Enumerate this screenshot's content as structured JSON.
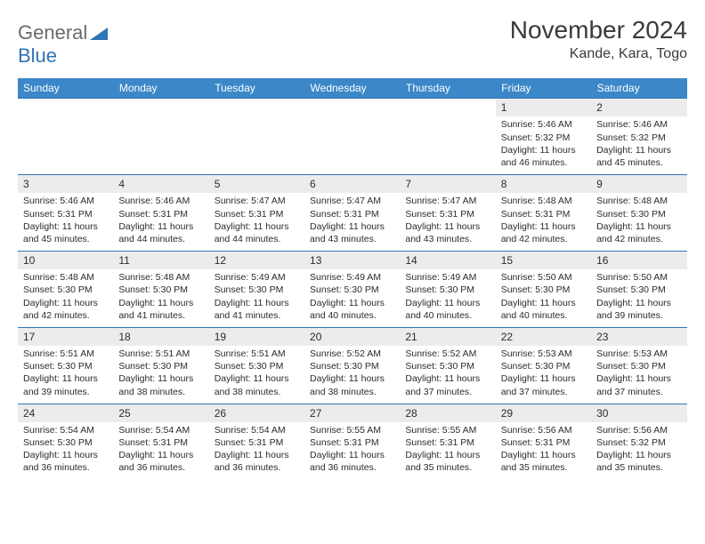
{
  "logo": {
    "word1": "General",
    "word2": "Blue"
  },
  "title": "November 2024",
  "location": "Kande, Kara, Togo",
  "colors": {
    "header_bg": "#3b87c8",
    "header_text": "#ffffff",
    "row_border": "#2f74b5",
    "daynum_bg": "#ececec",
    "text": "#2b2b2b",
    "logo_blue": "#2f74b5",
    "logo_gray": "#6b6b6b"
  },
  "day_headers": [
    "Sunday",
    "Monday",
    "Tuesday",
    "Wednesday",
    "Thursday",
    "Friday",
    "Saturday"
  ],
  "weeks": [
    [
      null,
      null,
      null,
      null,
      null,
      {
        "n": "1",
        "sr": "Sunrise: 5:46 AM",
        "ss": "Sunset: 5:32 PM",
        "dl": "Daylight: 11 hours and 46 minutes."
      },
      {
        "n": "2",
        "sr": "Sunrise: 5:46 AM",
        "ss": "Sunset: 5:32 PM",
        "dl": "Daylight: 11 hours and 45 minutes."
      }
    ],
    [
      {
        "n": "3",
        "sr": "Sunrise: 5:46 AM",
        "ss": "Sunset: 5:31 PM",
        "dl": "Daylight: 11 hours and 45 minutes."
      },
      {
        "n": "4",
        "sr": "Sunrise: 5:46 AM",
        "ss": "Sunset: 5:31 PM",
        "dl": "Daylight: 11 hours and 44 minutes."
      },
      {
        "n": "5",
        "sr": "Sunrise: 5:47 AM",
        "ss": "Sunset: 5:31 PM",
        "dl": "Daylight: 11 hours and 44 minutes."
      },
      {
        "n": "6",
        "sr": "Sunrise: 5:47 AM",
        "ss": "Sunset: 5:31 PM",
        "dl": "Daylight: 11 hours and 43 minutes."
      },
      {
        "n": "7",
        "sr": "Sunrise: 5:47 AM",
        "ss": "Sunset: 5:31 PM",
        "dl": "Daylight: 11 hours and 43 minutes."
      },
      {
        "n": "8",
        "sr": "Sunrise: 5:48 AM",
        "ss": "Sunset: 5:31 PM",
        "dl": "Daylight: 11 hours and 42 minutes."
      },
      {
        "n": "9",
        "sr": "Sunrise: 5:48 AM",
        "ss": "Sunset: 5:30 PM",
        "dl": "Daylight: 11 hours and 42 minutes."
      }
    ],
    [
      {
        "n": "10",
        "sr": "Sunrise: 5:48 AM",
        "ss": "Sunset: 5:30 PM",
        "dl": "Daylight: 11 hours and 42 minutes."
      },
      {
        "n": "11",
        "sr": "Sunrise: 5:48 AM",
        "ss": "Sunset: 5:30 PM",
        "dl": "Daylight: 11 hours and 41 minutes."
      },
      {
        "n": "12",
        "sr": "Sunrise: 5:49 AM",
        "ss": "Sunset: 5:30 PM",
        "dl": "Daylight: 11 hours and 41 minutes."
      },
      {
        "n": "13",
        "sr": "Sunrise: 5:49 AM",
        "ss": "Sunset: 5:30 PM",
        "dl": "Daylight: 11 hours and 40 minutes."
      },
      {
        "n": "14",
        "sr": "Sunrise: 5:49 AM",
        "ss": "Sunset: 5:30 PM",
        "dl": "Daylight: 11 hours and 40 minutes."
      },
      {
        "n": "15",
        "sr": "Sunrise: 5:50 AM",
        "ss": "Sunset: 5:30 PM",
        "dl": "Daylight: 11 hours and 40 minutes."
      },
      {
        "n": "16",
        "sr": "Sunrise: 5:50 AM",
        "ss": "Sunset: 5:30 PM",
        "dl": "Daylight: 11 hours and 39 minutes."
      }
    ],
    [
      {
        "n": "17",
        "sr": "Sunrise: 5:51 AM",
        "ss": "Sunset: 5:30 PM",
        "dl": "Daylight: 11 hours and 39 minutes."
      },
      {
        "n": "18",
        "sr": "Sunrise: 5:51 AM",
        "ss": "Sunset: 5:30 PM",
        "dl": "Daylight: 11 hours and 38 minutes."
      },
      {
        "n": "19",
        "sr": "Sunrise: 5:51 AM",
        "ss": "Sunset: 5:30 PM",
        "dl": "Daylight: 11 hours and 38 minutes."
      },
      {
        "n": "20",
        "sr": "Sunrise: 5:52 AM",
        "ss": "Sunset: 5:30 PM",
        "dl": "Daylight: 11 hours and 38 minutes."
      },
      {
        "n": "21",
        "sr": "Sunrise: 5:52 AM",
        "ss": "Sunset: 5:30 PM",
        "dl": "Daylight: 11 hours and 37 minutes."
      },
      {
        "n": "22",
        "sr": "Sunrise: 5:53 AM",
        "ss": "Sunset: 5:30 PM",
        "dl": "Daylight: 11 hours and 37 minutes."
      },
      {
        "n": "23",
        "sr": "Sunrise: 5:53 AM",
        "ss": "Sunset: 5:30 PM",
        "dl": "Daylight: 11 hours and 37 minutes."
      }
    ],
    [
      {
        "n": "24",
        "sr": "Sunrise: 5:54 AM",
        "ss": "Sunset: 5:30 PM",
        "dl": "Daylight: 11 hours and 36 minutes."
      },
      {
        "n": "25",
        "sr": "Sunrise: 5:54 AM",
        "ss": "Sunset: 5:31 PM",
        "dl": "Daylight: 11 hours and 36 minutes."
      },
      {
        "n": "26",
        "sr": "Sunrise: 5:54 AM",
        "ss": "Sunset: 5:31 PM",
        "dl": "Daylight: 11 hours and 36 minutes."
      },
      {
        "n": "27",
        "sr": "Sunrise: 5:55 AM",
        "ss": "Sunset: 5:31 PM",
        "dl": "Daylight: 11 hours and 36 minutes."
      },
      {
        "n": "28",
        "sr": "Sunrise: 5:55 AM",
        "ss": "Sunset: 5:31 PM",
        "dl": "Daylight: 11 hours and 35 minutes."
      },
      {
        "n": "29",
        "sr": "Sunrise: 5:56 AM",
        "ss": "Sunset: 5:31 PM",
        "dl": "Daylight: 11 hours and 35 minutes."
      },
      {
        "n": "30",
        "sr": "Sunrise: 5:56 AM",
        "ss": "Sunset: 5:32 PM",
        "dl": "Daylight: 11 hours and 35 minutes."
      }
    ]
  ]
}
